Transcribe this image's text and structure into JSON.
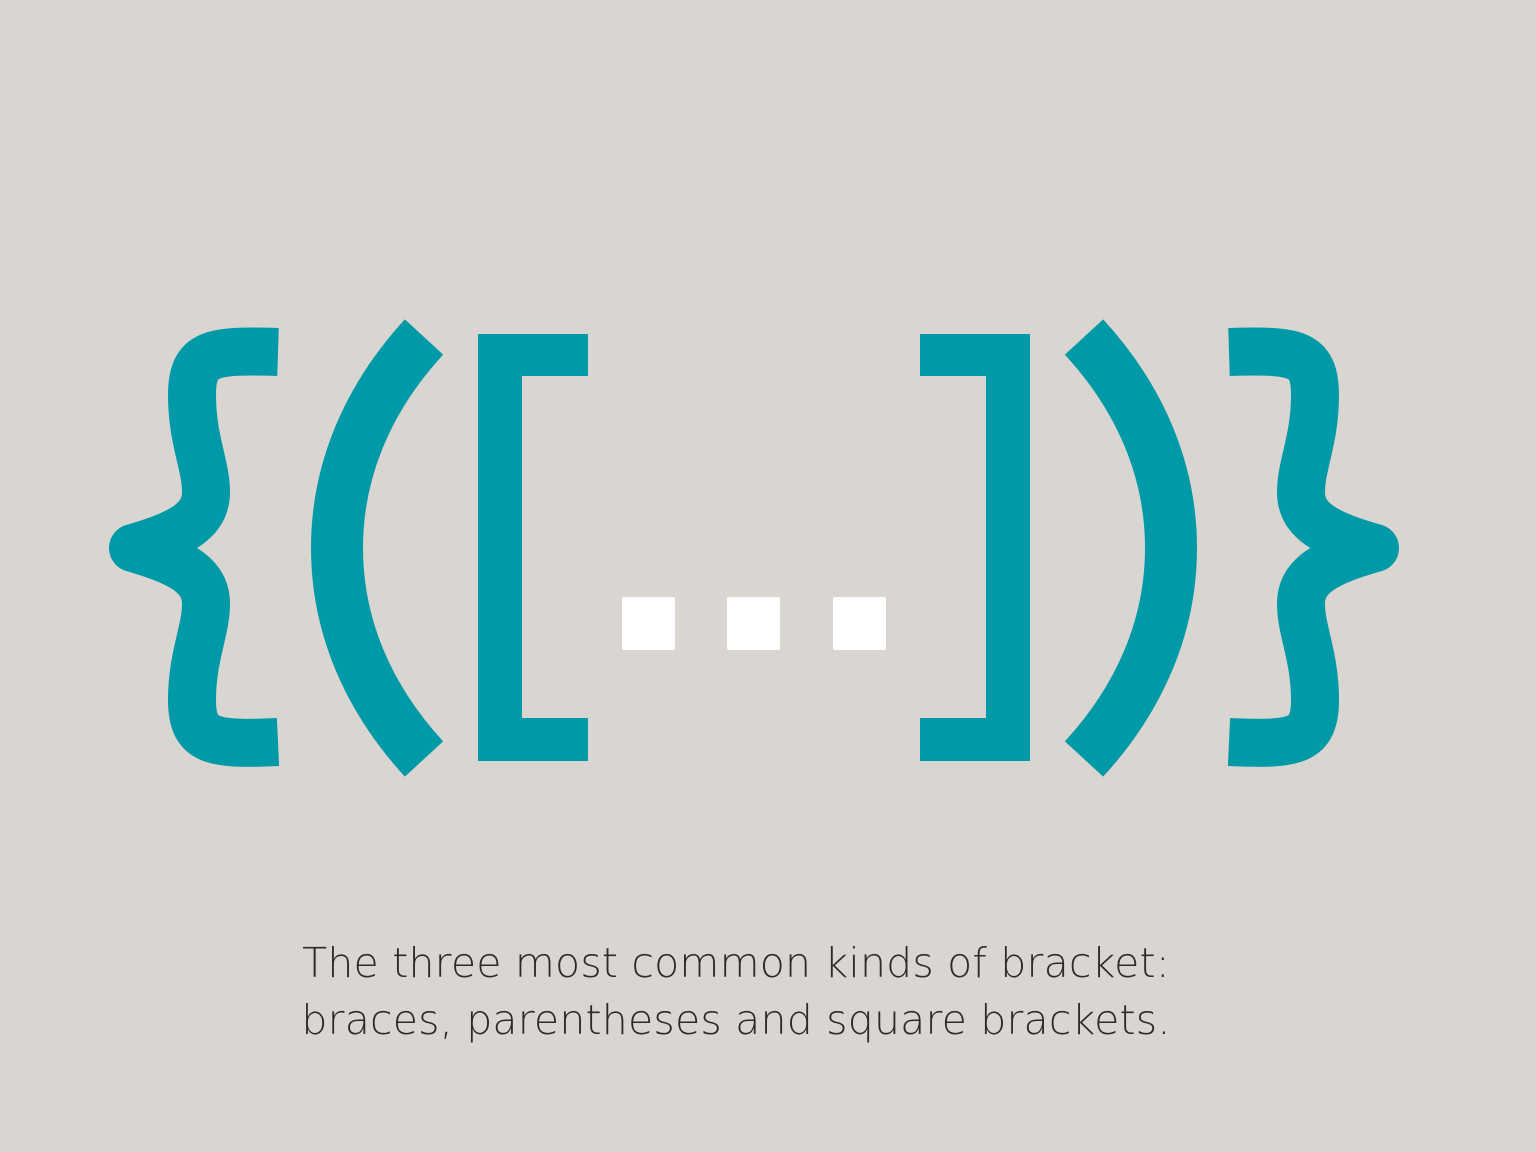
{
  "background_color": "#d9d5d1",
  "accent_color": "#0099a8",
  "ellipsis_color": "#ffffff",
  "text_color": "#2d2a28",
  "glyphs": [
    {
      "name": "left-brace-icon",
      "char": "{"
    },
    {
      "name": "left-parenthesis-icon",
      "char": "("
    },
    {
      "name": "left-square-bracket-icon",
      "char": "["
    },
    {
      "name": "ellipsis-icon",
      "char": "..."
    },
    {
      "name": "right-square-bracket-icon",
      "char": "]"
    },
    {
      "name": "right-parenthesis-icon",
      "char": ")"
    },
    {
      "name": "right-brace-icon",
      "char": "}"
    }
  ],
  "caption": {
    "line1": "The three most common kinds of bracket:",
    "line2": "braces, parentheses and square brackets."
  }
}
